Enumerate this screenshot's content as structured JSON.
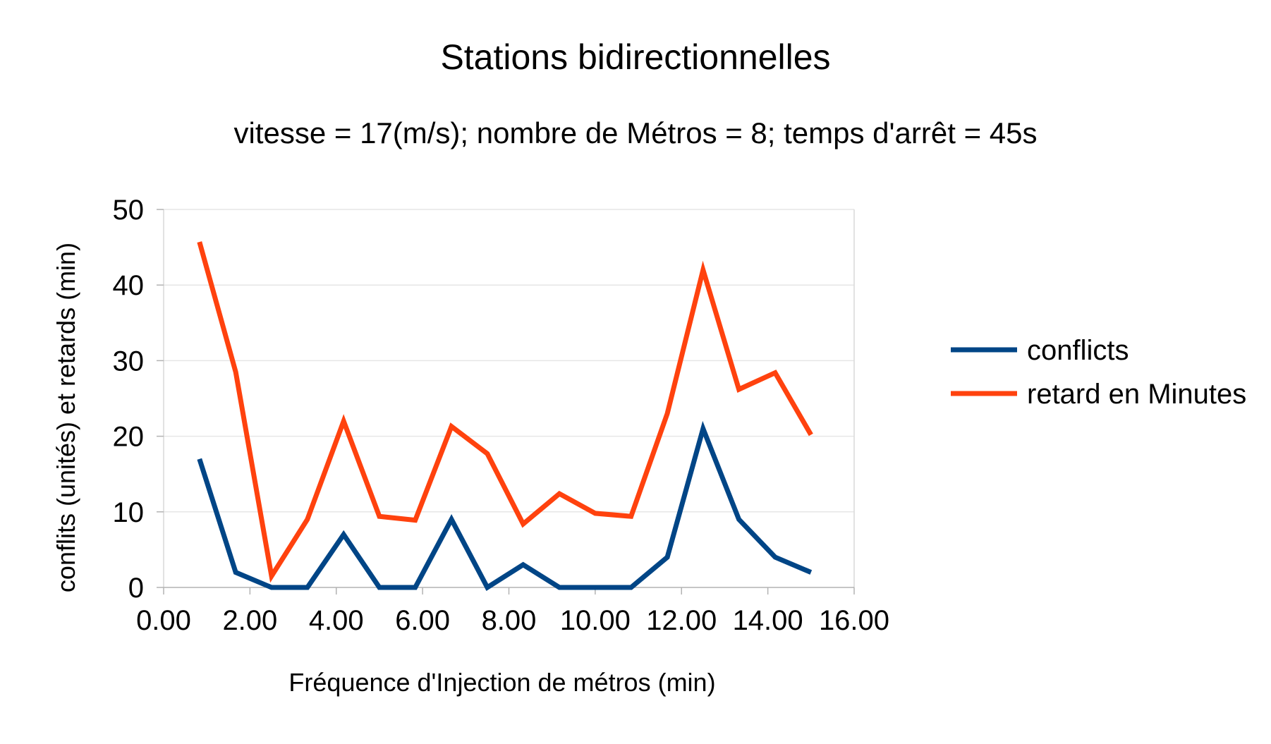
{
  "chart_data": {
    "type": "line",
    "title": "Stations bidirectionnelles",
    "subtitle": "vitesse = 17(m/s); nombre de Métros = 8; temps d'arrêt = 45s",
    "xlabel": "Fréquence d'Injection de métros (min)",
    "ylabel": "conflits (unités) et retards (min)",
    "xlim": [
      0,
      16
    ],
    "ylim": [
      0,
      50
    ],
    "x_ticks": [
      "0.00",
      "2.00",
      "4.00",
      "6.00",
      "8.00",
      "10.00",
      "12.00",
      "14.00",
      "16.00"
    ],
    "y_ticks": [
      "0",
      "10",
      "20",
      "30",
      "40",
      "50"
    ],
    "grid": true,
    "legend_position": "right",
    "x": [
      0.83,
      1.67,
      2.5,
      3.33,
      4.17,
      5.0,
      5.83,
      6.67,
      7.5,
      8.33,
      9.17,
      10.0,
      10.83,
      11.67,
      12.5,
      13.33,
      14.17,
      15.0
    ],
    "series": [
      {
        "name": "conflicts",
        "color": "#004586",
        "values": [
          17,
          2,
          0,
          0,
          7,
          0,
          0,
          9,
          0,
          3,
          0,
          0,
          0,
          4,
          21,
          9,
          4,
          2
        ]
      },
      {
        "name": "retard en Minutes",
        "color": "#ff420e",
        "values": [
          45.7,
          28.5,
          1.5,
          9,
          22,
          9.4,
          8.9,
          21.3,
          17.7,
          8.4,
          12.4,
          9.8,
          9.4,
          23,
          42,
          26.2,
          28.4,
          20.2
        ]
      }
    ]
  }
}
